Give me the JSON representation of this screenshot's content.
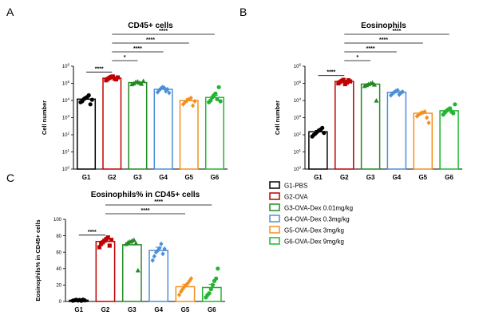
{
  "chart_data": [
    {
      "type": "bar",
      "panel_label": "A",
      "title": "CD45+ cells",
      "ylabel": "Cell number",
      "yscale": "log",
      "ylim": [
        1,
        1000000
      ],
      "yticks": [
        {
          "v": 1,
          "base": "10",
          "exp": "0"
        },
        {
          "v": 10,
          "base": "10",
          "exp": "1"
        },
        {
          "v": 100,
          "base": "10",
          "exp": "2"
        },
        {
          "v": 1000,
          "base": "10",
          "exp": "3"
        },
        {
          "v": 10000,
          "base": "10",
          "exp": "4"
        },
        {
          "v": 100000,
          "base": "10",
          "exp": "5"
        },
        {
          "v": 1000000,
          "base": "10",
          "exp": "6"
        }
      ],
      "categories": [
        "G1",
        "G2",
        "G3",
        "G4",
        "G5",
        "G6"
      ],
      "values": [
        12000,
        200000,
        110000,
        45000,
        10000,
        15000
      ],
      "error": [
        3500,
        40000,
        12000,
        8000,
        3000,
        5000
      ],
      "points": [
        [
          8000,
          9000,
          12000,
          14000,
          16000,
          20000,
          6000,
          11000
        ],
        [
          150000,
          180000,
          210000,
          240000,
          250000,
          190000,
          170000,
          220000
        ],
        [
          90000,
          100000,
          120000,
          130000,
          110000,
          95000,
          140000
        ],
        [
          30000,
          40000,
          50000,
          60000,
          55000,
          35000,
          45000,
          28000
        ],
        [
          6000,
          8000,
          10000,
          12000,
          14000,
          5000,
          9000
        ],
        [
          8000,
          10000,
          15000,
          20000,
          25000,
          12000,
          60000,
          9000
        ]
      ],
      "comparisons": [
        {
          "from": 0,
          "to": 1,
          "label": "****"
        },
        {
          "from": 1,
          "to": 2,
          "label": "*"
        },
        {
          "from": 1,
          "to": 3,
          "label": "****"
        },
        {
          "from": 1,
          "to": 4,
          "label": "****"
        },
        {
          "from": 1,
          "to": 5,
          "label": "****"
        }
      ]
    },
    {
      "type": "bar",
      "panel_label": "B",
      "title": "Eosinophils",
      "ylabel": "Cell number",
      "yscale": "log",
      "ylim": [
        1,
        1000000
      ],
      "yticks": [
        {
          "v": 1,
          "base": "10",
          "exp": "0"
        },
        {
          "v": 10,
          "base": "10",
          "exp": "1"
        },
        {
          "v": 100,
          "base": "10",
          "exp": "2"
        },
        {
          "v": 1000,
          "base": "10",
          "exp": "3"
        },
        {
          "v": 10000,
          "base": "10",
          "exp": "4"
        },
        {
          "v": 100000,
          "base": "10",
          "exp": "5"
        },
        {
          "v": 1000000,
          "base": "10",
          "exp": "6"
        }
      ],
      "categories": [
        "G1",
        "G2",
        "G3",
        "G4",
        "G5",
        "G6"
      ],
      "values": [
        150,
        130000,
        90000,
        30000,
        1800,
        2500
      ],
      "error": [
        30,
        20000,
        10000,
        6000,
        400,
        600
      ],
      "points": [
        [
          80,
          100,
          120,
          150,
          180,
          200,
          250,
          130
        ],
        [
          100000,
          120000,
          140000,
          160000,
          90000,
          110000,
          150000,
          130000
        ],
        [
          70000,
          80000,
          90000,
          100000,
          110000,
          85000,
          10000
        ],
        [
          20000,
          25000,
          30000,
          35000,
          40000,
          22000,
          28000,
          32000
        ],
        [
          1200,
          1500,
          1800,
          2000,
          2200,
          1000,
          500
        ],
        [
          1500,
          2000,
          2500,
          3000,
          3500,
          2200,
          1800,
          6000
        ]
      ],
      "comparisons": [
        {
          "from": 0,
          "to": 1,
          "label": "****"
        },
        {
          "from": 1,
          "to": 2,
          "label": "*"
        },
        {
          "from": 1,
          "to": 3,
          "label": "****"
        },
        {
          "from": 1,
          "to": 4,
          "label": "****"
        },
        {
          "from": 1,
          "to": 5,
          "label": "****"
        }
      ]
    },
    {
      "type": "bar",
      "panel_label": "C",
      "title": "Eosinophils% in CD45+ cells",
      "ylabel": "Eosinophils% in CD45+ cells",
      "yscale": "linear",
      "ylim": [
        0,
        100
      ],
      "yticks": [
        {
          "v": 0,
          "label": "0"
        },
        {
          "v": 20,
          "label": "20"
        },
        {
          "v": 40,
          "label": "40"
        },
        {
          "v": 60,
          "label": "60"
        },
        {
          "v": 80,
          "label": "80"
        },
        {
          "v": 100,
          "label": "100"
        }
      ],
      "categories": [
        "G1",
        "G2",
        "G3",
        "G4",
        "G5",
        "G6"
      ],
      "values": [
        1.5,
        73,
        69,
        62,
        18,
        17
      ],
      "error": [
        0.5,
        2,
        4,
        4,
        3,
        4
      ],
      "points": [
        [
          1,
          1.5,
          2,
          1.2,
          1.8,
          0.8,
          2.2,
          1.4
        ],
        [
          66,
          70,
          72,
          74,
          76,
          78,
          68,
          75
        ],
        [
          70,
          72,
          73,
          74,
          75,
          71,
          38
        ],
        [
          50,
          55,
          60,
          62,
          65,
          70,
          58,
          64
        ],
        [
          8,
          12,
          15,
          18,
          20,
          22,
          25,
          28
        ],
        [
          5,
          8,
          10,
          15,
          20,
          25,
          28,
          40
        ]
      ],
      "comparisons": [
        {
          "from": 0,
          "to": 1,
          "label": "****"
        },
        {
          "from": 1,
          "to": 4,
          "label": "****"
        },
        {
          "from": 1,
          "to": 5,
          "label": "****"
        }
      ]
    }
  ],
  "groups": [
    {
      "label": "G1-PBS",
      "color": "#000000",
      "marker": "circle"
    },
    {
      "label": "G2-OVA",
      "color": "#c00000",
      "marker": "square"
    },
    {
      "label": "G3-OVA-Dex 0.01mg/kg",
      "color": "#228b22",
      "marker": "triangle"
    },
    {
      "label": "G4-OVA-Dex 0.3mg/kg",
      "color": "#4a90d9",
      "marker": "diamond"
    },
    {
      "label": "G5-OVA-Dex 3mg/kg",
      "color": "#f39020",
      "marker": "diamond"
    },
    {
      "label": "G6-OVA-Dex 9mg/kg",
      "color": "#22b531",
      "marker": "circle"
    }
  ]
}
